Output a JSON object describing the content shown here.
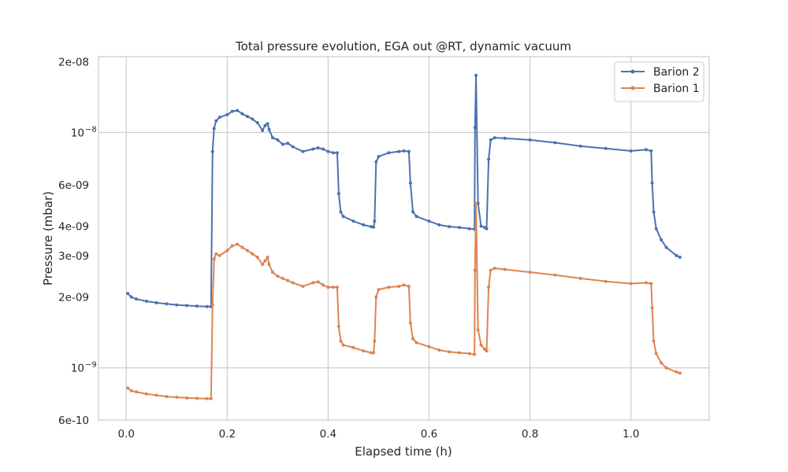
{
  "chart_data": {
    "type": "line",
    "title": "Total pressure evolution, EGA out @RT, dynamic vacuum",
    "xlabel": "Elapsed time (h)",
    "ylabel": "Pressure (mbar)",
    "yscale": "log",
    "xlim": [
      -0.055,
      1.155
    ],
    "ylim": [
      6e-10,
      2.1e-08
    ],
    "grid": true,
    "legend": "top-right",
    "x_ticks": [
      {
        "value": 0.0,
        "label": "0.0"
      },
      {
        "value": 0.2,
        "label": "0.2"
      },
      {
        "value": 0.4,
        "label": "0.4"
      },
      {
        "value": 0.6,
        "label": "0.6"
      },
      {
        "value": 0.8,
        "label": "0.8"
      },
      {
        "value": 1.0,
        "label": "1.0"
      }
    ],
    "y_ticks": [
      {
        "value": 6e-10,
        "label": "6e-10",
        "grid": false
      },
      {
        "value": 1e-09,
        "label": "10",
        "exp": "−9",
        "grid": true
      },
      {
        "value": 2e-09,
        "label": "2e-09",
        "grid": false
      },
      {
        "value": 3e-09,
        "label": "3e-09",
        "grid": false
      },
      {
        "value": 4e-09,
        "label": "4e-09",
        "grid": false
      },
      {
        "value": 6e-09,
        "label": "6e-09",
        "grid": false
      },
      {
        "value": 1e-08,
        "label": "10",
        "exp": "−8",
        "grid": true
      },
      {
        "value": 2e-08,
        "label": "2e-08",
        "grid": false
      }
    ],
    "series": [
      {
        "name": "Barion 2",
        "color": "#4c72b0",
        "x": [
          0.003,
          0.01,
          0.02,
          0.04,
          0.06,
          0.08,
          0.1,
          0.12,
          0.14,
          0.16,
          0.168,
          0.171,
          0.174,
          0.178,
          0.185,
          0.2,
          0.21,
          0.22,
          0.23,
          0.24,
          0.25,
          0.26,
          0.27,
          0.275,
          0.28,
          0.283,
          0.29,
          0.3,
          0.31,
          0.32,
          0.33,
          0.35,
          0.37,
          0.38,
          0.39,
          0.4,
          0.41,
          0.418,
          0.421,
          0.425,
          0.43,
          0.45,
          0.47,
          0.485,
          0.49,
          0.492,
          0.495,
          0.5,
          0.52,
          0.54,
          0.55,
          0.56,
          0.563,
          0.568,
          0.575,
          0.6,
          0.62,
          0.64,
          0.66,
          0.68,
          0.69,
          0.691,
          0.693,
          0.697,
          0.703,
          0.71,
          0.714,
          0.718,
          0.722,
          0.73,
          0.75,
          0.8,
          0.85,
          0.9,
          0.95,
          1.0,
          1.03,
          1.04,
          1.042,
          1.045,
          1.05,
          1.06,
          1.07,
          1.09,
          1.097
        ],
        "y": [
          2.07e-09,
          2e-09,
          1.96e-09,
          1.92e-09,
          1.89e-09,
          1.87e-09,
          1.85e-09,
          1.84e-09,
          1.83e-09,
          1.82e-09,
          1.82e-09,
          8.3e-09,
          1.04e-08,
          1.12e-08,
          1.16e-08,
          1.19e-08,
          1.23e-08,
          1.24e-08,
          1.2e-08,
          1.17e-08,
          1.14e-08,
          1.1e-08,
          1.02e-08,
          1.07e-08,
          1.09e-08,
          1.03e-08,
          9.5e-09,
          9.3e-09,
          8.9e-09,
          9e-09,
          8.7e-09,
          8.3e-09,
          8.5e-09,
          8.6e-09,
          8.5e-09,
          8.3e-09,
          8.2e-09,
          8.2e-09,
          5.5e-09,
          4.6e-09,
          4.4e-09,
          4.2e-09,
          4.05e-09,
          3.98e-09,
          3.96e-09,
          4.2e-09,
          7.5e-09,
          7.9e-09,
          8.2e-09,
          8.3e-09,
          8.35e-09,
          8.3e-09,
          6.1e-09,
          4.6e-09,
          4.4e-09,
          4.2e-09,
          4.05e-09,
          3.98e-09,
          3.95e-09,
          3.9e-09,
          3.88e-09,
          1.05e-08,
          1.75e-08,
          5e-09,
          4e-09,
          3.95e-09,
          3.9e-09,
          7.7e-09,
          9.3e-09,
          9.5e-09,
          9.45e-09,
          9.3e-09,
          9.05e-09,
          8.75e-09,
          8.55e-09,
          8.35e-09,
          8.45e-09,
          8.35e-09,
          6.1e-09,
          4.6e-09,
          3.9e-09,
          3.5e-09,
          3.25e-09,
          3e-09,
          2.95e-09
        ]
      },
      {
        "name": "Barion 1",
        "color": "#dd8452",
        "x": [
          0.003,
          0.01,
          0.02,
          0.04,
          0.06,
          0.08,
          0.1,
          0.12,
          0.14,
          0.16,
          0.168,
          0.171,
          0.174,
          0.178,
          0.185,
          0.2,
          0.21,
          0.22,
          0.23,
          0.24,
          0.25,
          0.26,
          0.27,
          0.275,
          0.28,
          0.283,
          0.29,
          0.3,
          0.31,
          0.32,
          0.33,
          0.35,
          0.37,
          0.38,
          0.39,
          0.4,
          0.41,
          0.418,
          0.421,
          0.425,
          0.43,
          0.45,
          0.47,
          0.485,
          0.49,
          0.492,
          0.495,
          0.5,
          0.52,
          0.54,
          0.55,
          0.56,
          0.563,
          0.568,
          0.575,
          0.6,
          0.62,
          0.64,
          0.66,
          0.68,
          0.69,
          0.691,
          0.693,
          0.697,
          0.703,
          0.71,
          0.714,
          0.718,
          0.722,
          0.73,
          0.75,
          0.8,
          0.85,
          0.9,
          0.95,
          1.0,
          1.03,
          1.04,
          1.042,
          1.045,
          1.05,
          1.06,
          1.07,
          1.09,
          1.097
        ],
        "y": [
          8.2e-10,
          8e-10,
          7.9e-10,
          7.75e-10,
          7.65e-10,
          7.55e-10,
          7.5e-10,
          7.45e-10,
          7.42e-10,
          7.4e-10,
          7.4e-10,
          1.85e-09,
          2.9e-09,
          3.05e-09,
          3e-09,
          3.15e-09,
          3.3e-09,
          3.35e-09,
          3.25e-09,
          3.15e-09,
          3.05e-09,
          2.95e-09,
          2.75e-09,
          2.85e-09,
          2.95e-09,
          2.75e-09,
          2.55e-09,
          2.45e-09,
          2.4e-09,
          2.35e-09,
          2.3e-09,
          2.22e-09,
          2.3e-09,
          2.32e-09,
          2.25e-09,
          2.2e-09,
          2.2e-09,
          2.2e-09,
          1.5e-09,
          1.3e-09,
          1.25e-09,
          1.22e-09,
          1.18e-09,
          1.16e-09,
          1.16e-09,
          1.3e-09,
          2e-09,
          2.15e-09,
          2.2e-09,
          2.22e-09,
          2.25e-09,
          2.22e-09,
          1.55e-09,
          1.33e-09,
          1.28e-09,
          1.23e-09,
          1.19e-09,
          1.17e-09,
          1.16e-09,
          1.15e-09,
          1.14e-09,
          2.6e-09,
          5e-09,
          1.45e-09,
          1.25e-09,
          1.2e-09,
          1.18e-09,
          2.2e-09,
          2.6e-09,
          2.65e-09,
          2.62e-09,
          2.55e-09,
          2.48e-09,
          2.4e-09,
          2.33e-09,
          2.28e-09,
          2.3e-09,
          2.28e-09,
          1.8e-09,
          1.3e-09,
          1.15e-09,
          1.05e-09,
          1e-09,
          9.6e-10,
          9.5e-10
        ]
      }
    ]
  }
}
